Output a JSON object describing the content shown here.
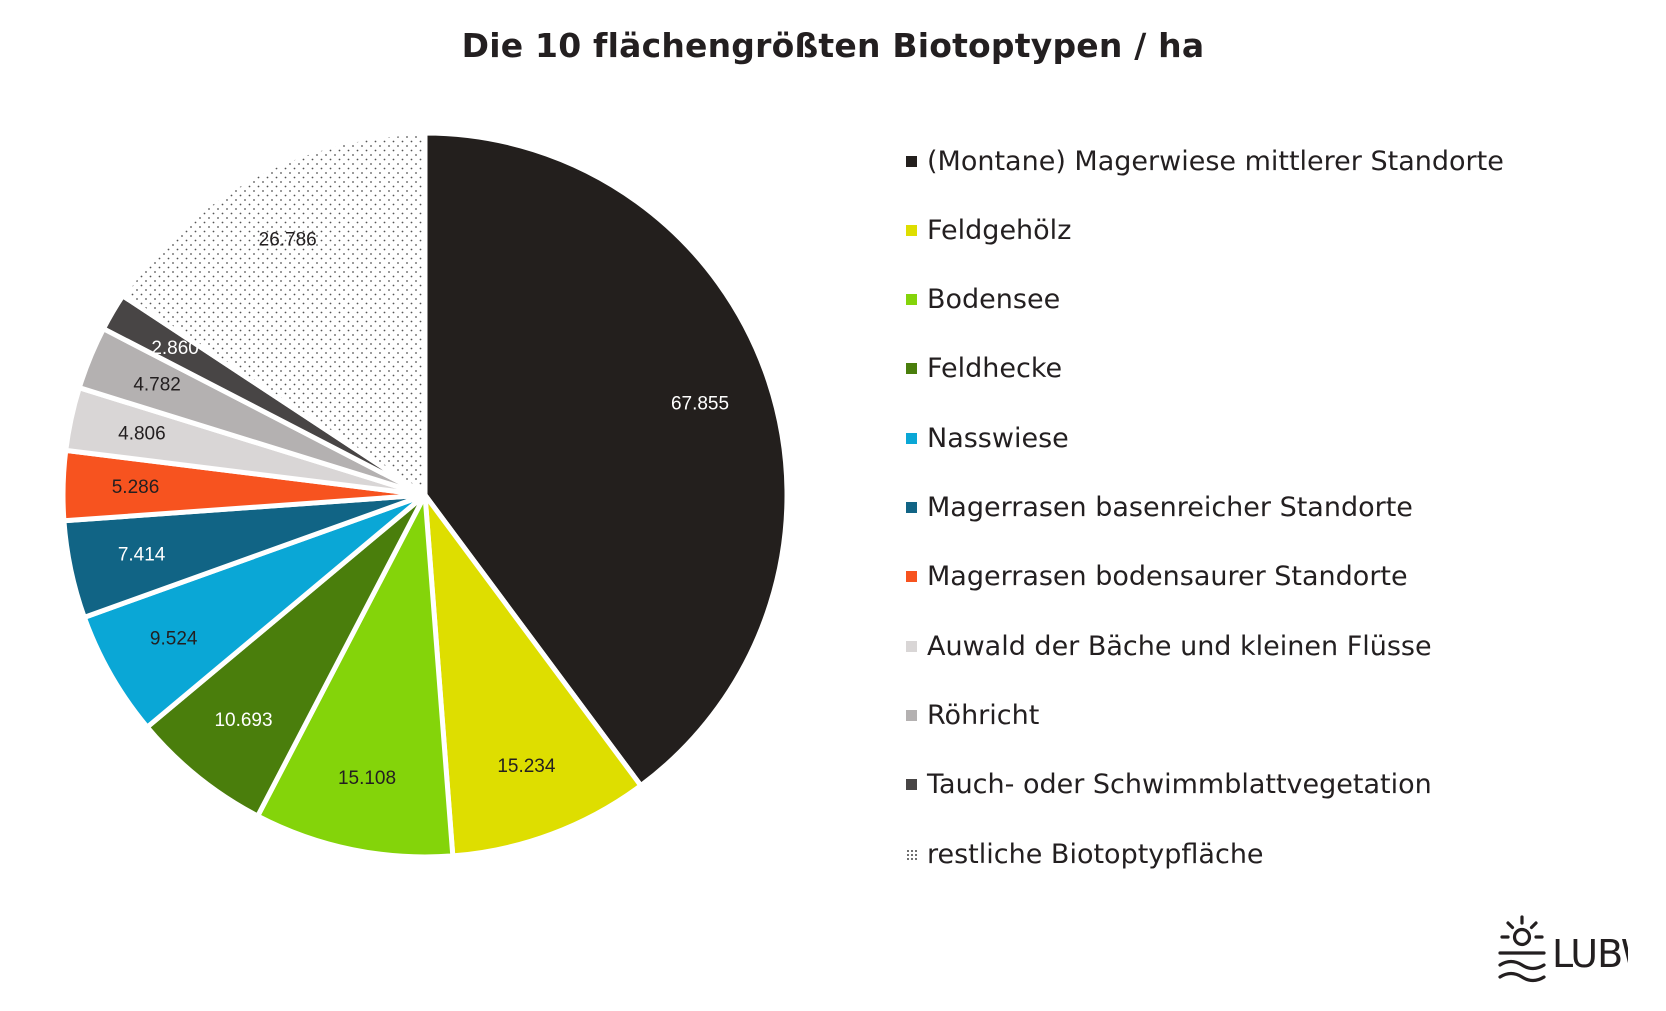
{
  "chart_data": {
    "type": "pie",
    "title": "Die 10 flächengrößten Biotoptypen / ha",
    "unit": "ha",
    "legend_position": "right",
    "slices": [
      {
        "name": "(Montane) Magerwiese mittlerer Standorte",
        "value": 67855,
        "label": "67.855",
        "color": "#231f1d",
        "label_color": "#ffffff"
      },
      {
        "name": "Feldgehölz",
        "value": 15234,
        "label": "15.234",
        "color": "#dede00",
        "label_color": "#231f20"
      },
      {
        "name": "Bodensee",
        "value": 15108,
        "label": "15.108",
        "color": "#84d40a",
        "label_color": "#231f20"
      },
      {
        "name": "Feldhecke",
        "value": 10693,
        "label": "10.693",
        "color": "#4a7e0c",
        "label_color": "#ffffff"
      },
      {
        "name": "Nasswiese",
        "value": 9524,
        "label": "9.524",
        "color": "#0aa7d6",
        "label_color": "#231f20"
      },
      {
        "name": "Magerrasen basenreicher Standorte",
        "value": 7414,
        "label": "7.414",
        "color": "#116485",
        "label_color": "#ffffff"
      },
      {
        "name": "Magerrasen bodensaurer Standorte",
        "value": 5286,
        "label": "5.286",
        "color": "#f7531f",
        "label_color": "#231f20"
      },
      {
        "name": "Auwald der Bäche und kleinen Flüsse",
        "value": 4806,
        "label": "4.806",
        "color": "#d9d6d6",
        "label_color": "#231f20"
      },
      {
        "name": "Röhricht",
        "value": 4782,
        "label": "4.782",
        "color": "#b4b1b1",
        "label_color": "#231f20"
      },
      {
        "name": "Tauch- oder Schwimmblattvegetation",
        "value": 2860,
        "label": "2.860",
        "color": "#484545",
        "label_color": "#ffffff"
      },
      {
        "name": "restliche Biotoptypfläche",
        "value": 26786,
        "label": "26.786",
        "color": "dots",
        "label_color": "#231f20"
      }
    ]
  },
  "logo": {
    "text": "LUBW",
    "icon": "sun-over-waves-icon"
  }
}
